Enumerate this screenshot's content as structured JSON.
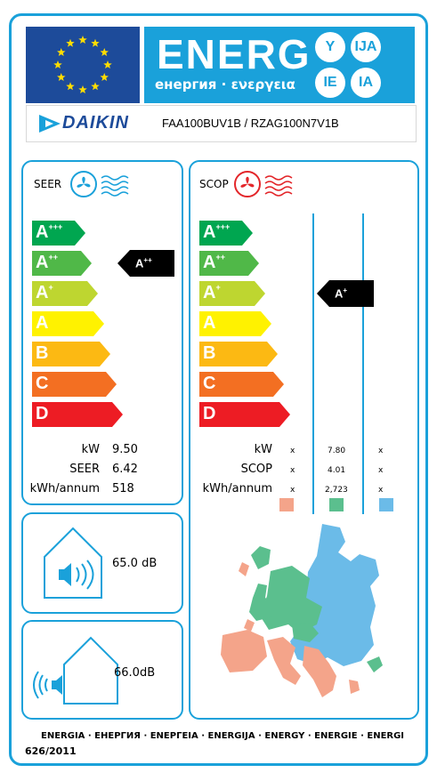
{
  "header": {
    "energy_word": "ENERG",
    "energy_subtitle": "енергия · ενεργεια",
    "lang_circles": [
      "Y",
      "IJA",
      "IE",
      "IA"
    ]
  },
  "brand": {
    "logo_text": "DAIKIN",
    "model": "FAA100BUV1B / RZAG100N7V1B"
  },
  "cooling": {
    "title": "SEER",
    "classes": [
      "A+++",
      "A++",
      "A+",
      "A",
      "B",
      "C",
      "D"
    ],
    "rating": "A++",
    "rating_index": 1,
    "labels": [
      "kW",
      "SEER",
      "kWh/annum"
    ],
    "values": [
      "9.50",
      "6.42",
      "518"
    ]
  },
  "heating": {
    "title": "SCOP",
    "classes": [
      "A+++",
      "A++",
      "A+",
      "A",
      "B",
      "C",
      "D"
    ],
    "rating": "A+",
    "rating_index": 2,
    "labels": [
      "kW",
      "SCOP",
      "kWh/annum"
    ],
    "col_warmer": [
      "x",
      "x",
      "x"
    ],
    "col_average": [
      "7.80",
      "4.01",
      "2,723"
    ],
    "col_colder": [
      "x",
      "x",
      "x"
    ],
    "zone_colors": [
      "#f4a48a",
      "#5bbf8e",
      "#6bbbe8"
    ]
  },
  "noise_indoor": {
    "value": "65.0",
    "unit": "dB"
  },
  "noise_outdoor": {
    "value": "66.0",
    "unit": "dB"
  },
  "footer": {
    "languages": "ENERGIA · ЕНЕРГИЯ · ΕΝΕΡΓΕΙΑ · ENERGIJA · ENERGY · ENERGIE · ENERGI",
    "regulation": "626/2011"
  },
  "colors": {
    "frame": "#1aa1da",
    "eu_blue": "#1d4b9a",
    "star": "#ffdd00",
    "class_colors": [
      "#00a650",
      "#50b848",
      "#bed630",
      "#fff200",
      "#fcb913",
      "#f36f22",
      "#ed1c24"
    ]
  }
}
